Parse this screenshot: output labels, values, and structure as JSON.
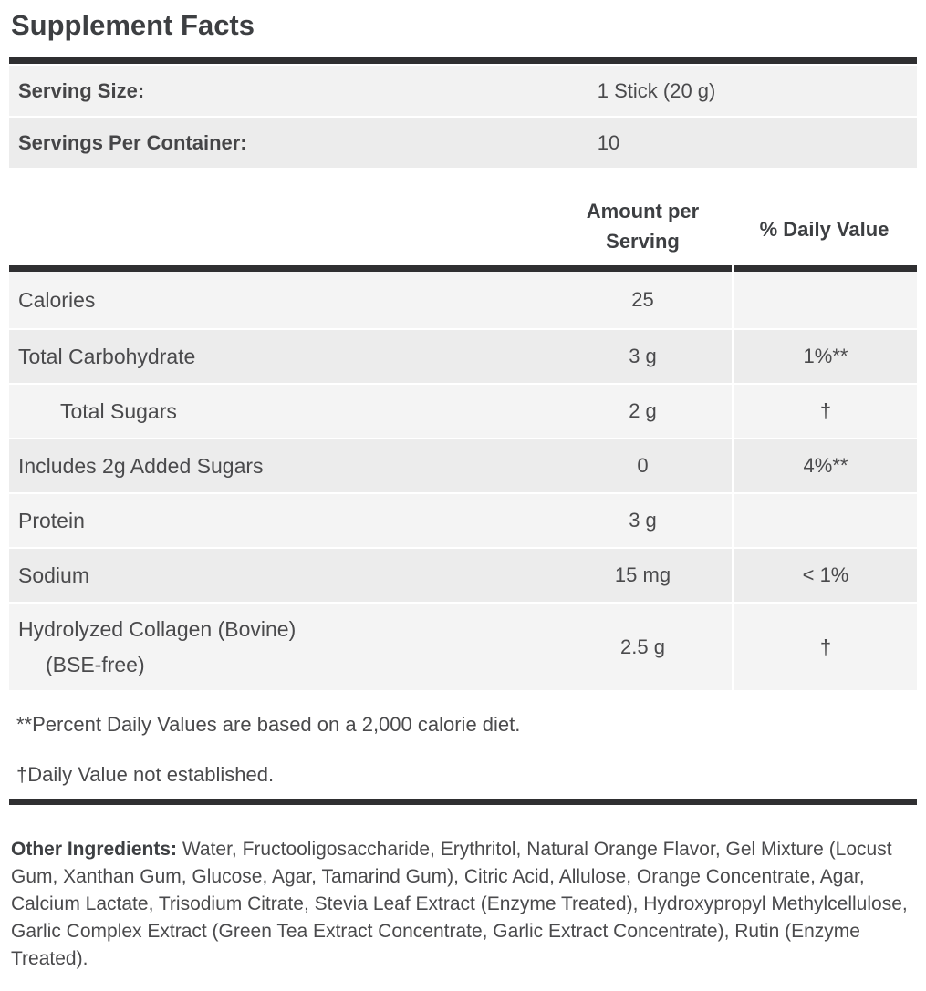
{
  "title": "Supplement Facts",
  "serving_info": {
    "rows": [
      {
        "label": "Serving Size:",
        "value": "1 Stick (20 g)"
      },
      {
        "label": "Servings Per Container:",
        "value": "10"
      }
    ]
  },
  "table": {
    "headers": {
      "amount": "Amount per Serving",
      "daily_value": "% Daily Value"
    },
    "rows": [
      {
        "name": "Calories",
        "amount": "25",
        "dv": "",
        "indent": false
      },
      {
        "name": "Total Carbohydrate",
        "amount": "3 g",
        "dv": "1%**",
        "indent": false
      },
      {
        "name": "Total Sugars",
        "amount": "2 g",
        "dv": "†",
        "indent": true
      },
      {
        "name": "Includes 2g Added Sugars",
        "amount": "0",
        "dv": "4%**",
        "indent": false
      },
      {
        "name": "Protein",
        "amount": "3 g",
        "dv": "",
        "indent": false
      },
      {
        "name": "Sodium",
        "amount": "15 mg",
        "dv": "< 1%",
        "indent": false
      },
      {
        "name": "Hydrolyzed Collagen (Bovine)",
        "name_line2": "(BSE-free)",
        "amount": "2.5 g",
        "dv": "†",
        "indent": false
      }
    ]
  },
  "footnotes": [
    "**Percent Daily Values are based on a 2,000 calorie diet.",
    "†Daily Value not established."
  ],
  "other_ingredients": {
    "label": "Other Ingredients:",
    "text": " Water, Fructooligosaccharide, Erythritol, Natural Orange Flavor, Gel Mixture (Locust Gum, Xanthan Gum, Glucose, Agar, Tamarind Gum), Citric Acid, Allulose, Orange Concentrate, Agar, Calcium Lactate, Trisodium Citrate, Stevia Leaf Extract (Enzyme Treated), Hydroxypropyl Methylcellulose, Garlic Complex Extract (Green Tea Extract Concentrate, Garlic Extract Concentrate), Rutin (Enzyme Treated)."
  },
  "colors": {
    "rule_dark": "#2f2f31",
    "row_light": "#f4f4f4",
    "row_dark": "#ececec",
    "serving_row_light": "#f2f2f2"
  }
}
